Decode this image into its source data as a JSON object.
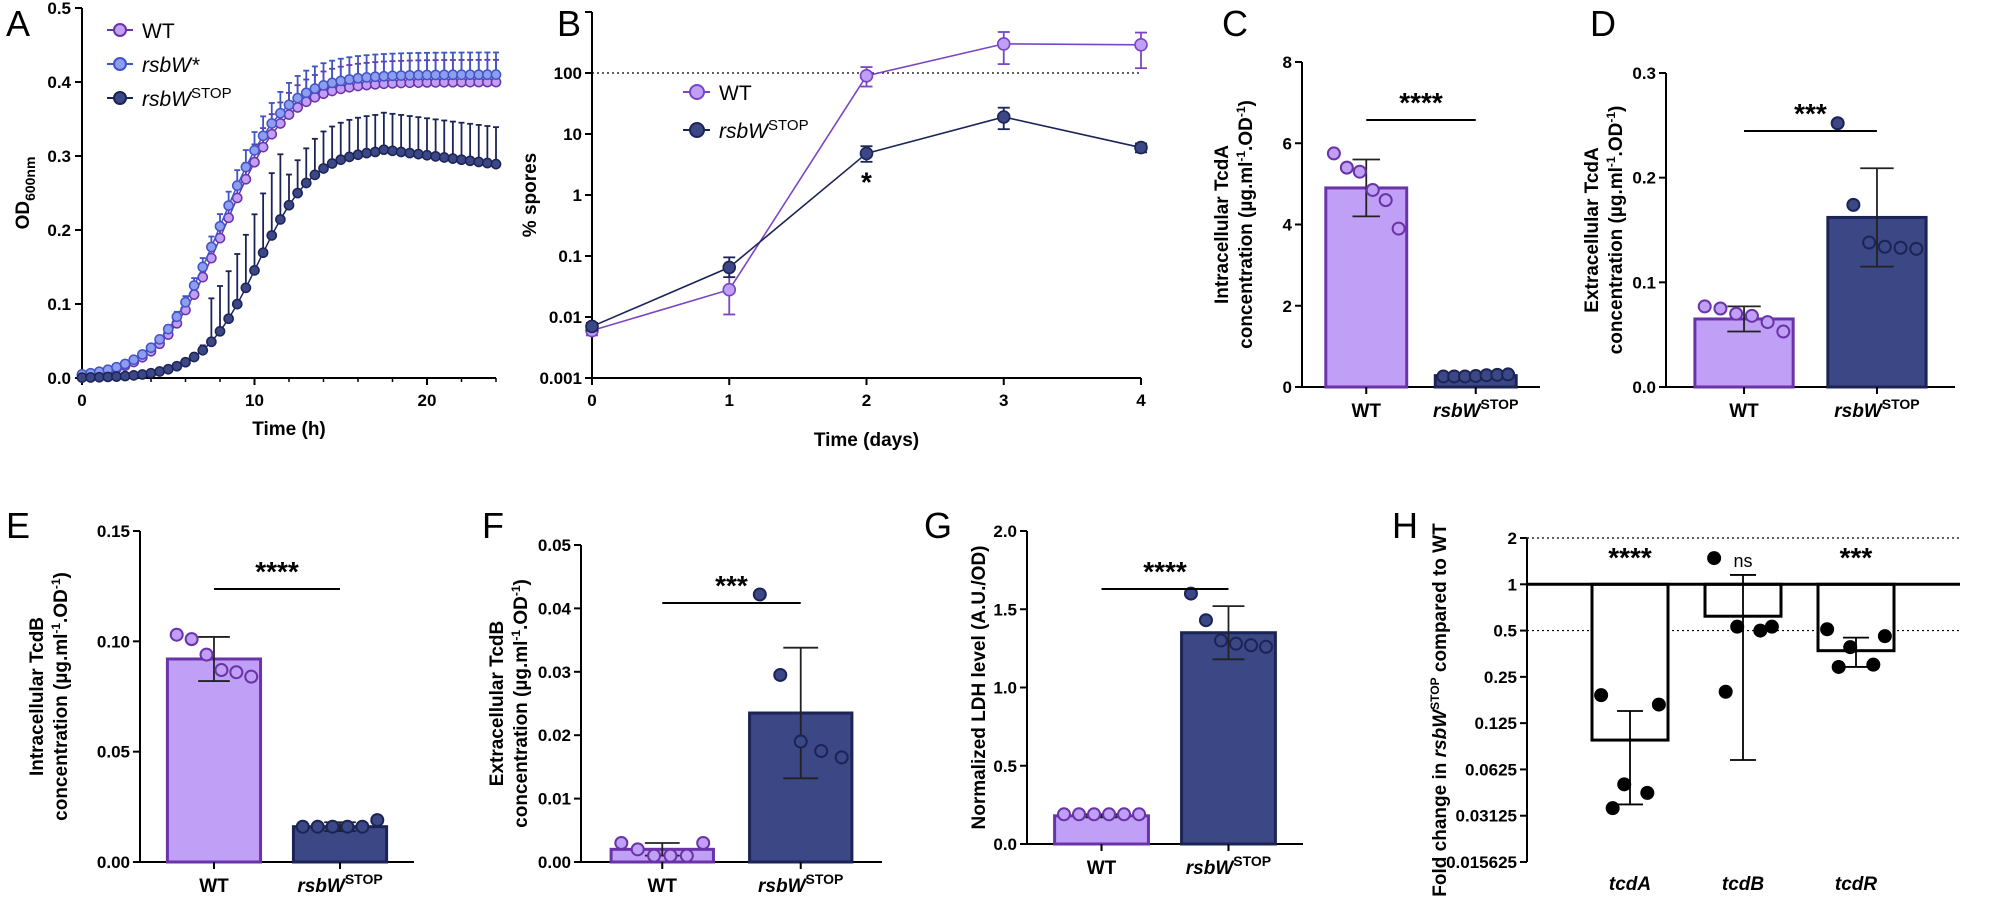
{
  "figure": {
    "panel_labels": [
      "A",
      "B",
      "C",
      "D",
      "E",
      "F",
      "G",
      "H"
    ],
    "colors": {
      "wt_fill": "#c09ff7",
      "wt_edge": "#6a33a8",
      "stop_fill": "#3c4785",
      "stop_edge": "#1c2457",
      "rsbw_fill": "#8f9df0",
      "black": "#000000"
    }
  },
  "chart_data": [
    {
      "panel": "A",
      "type": "line",
      "xlabel": "Time (h)",
      "ylabel": "OD",
      "ylabel_sub": "600nm",
      "xlim": [
        0,
        24
      ],
      "ylim": [
        0,
        0.5
      ],
      "xticks": [
        0,
        10,
        20
      ],
      "xticklabels": [
        "0",
        "10",
        "20"
      ],
      "yticks": [
        0,
        0.1,
        0.2,
        0.3,
        0.4,
        0.5
      ],
      "yticklabels": [
        "0.0",
        "0.1",
        "0.2",
        "0.3",
        "0.4",
        "0.5"
      ],
      "legend": [
        {
          "name": "WT",
          "italic": false,
          "sup": ""
        },
        {
          "name": "rsbW*",
          "italic": true,
          "sup": ""
        },
        {
          "name": "rsbW",
          "italic": true,
          "sup": "STOP"
        }
      ],
      "series": [
        {
          "name": "WT",
          "t_mid": 8.2,
          "k": 0.55,
          "max": 0.4,
          "slope_end": 0.0,
          "err": 0.03
        },
        {
          "name": "rsbW*",
          "t_mid": 8.0,
          "k": 0.55,
          "max": 0.41,
          "slope_end": 0.0,
          "err": 0.03
        },
        {
          "name": "rsbW STOP",
          "t_mid": 10.2,
          "k": 0.62,
          "max": 0.31,
          "slope_end": 0.0,
          "err": 0.05
        }
      ]
    },
    {
      "panel": "B",
      "type": "line",
      "xlabel": "Time (days)",
      "ylabel": "% spores",
      "xticks": [
        0,
        1,
        2,
        3,
        4
      ],
      "xticklabels": [
        "0",
        "1",
        "2",
        "3",
        "4"
      ],
      "yscale": "log",
      "ylim": [
        0.001,
        1000
      ],
      "yticks": [
        0.001,
        0.01,
        0.1,
        1,
        10,
        100
      ],
      "yticklabels": [
        "0.001",
        "0.01",
        "0.1",
        "1",
        "10",
        "100"
      ],
      "reference_line": 100,
      "legend": [
        {
          "name": "WT",
          "italic": false,
          "sup": ""
        },
        {
          "name": "rsbW",
          "italic": true,
          "sup": "STOP"
        }
      ],
      "annotation": "*",
      "series": [
        {
          "name": "WT",
          "x": [
            0,
            1,
            2,
            3,
            4
          ],
          "y": [
            0.006,
            0.028,
            90,
            300,
            290
          ],
          "err_lo": [
            0.005,
            0.011,
            60,
            140,
            120
          ],
          "err_hi": [
            0.008,
            0.06,
            125,
            470,
            460
          ]
        },
        {
          "name": "rsbW STOP",
          "x": [
            0,
            1,
            2,
            3,
            4
          ],
          "y": [
            0.007,
            0.065,
            4.8,
            19,
            6
          ],
          "err_lo": [
            0.006,
            0.045,
            3.5,
            12,
            5
          ],
          "err_hi": [
            0.008,
            0.095,
            6.3,
            27,
            7
          ]
        }
      ]
    },
    {
      "panel": "C",
      "type": "bar",
      "ylabel_lines": [
        "Intracellular TcdA",
        "concentration (µg.ml",
        "-1",
        ".OD",
        "-1",
        ")"
      ],
      "categories": [
        "WT",
        "rsbW STOP"
      ],
      "cat_main": [
        "WT",
        "rsbW"
      ],
      "cat_sup": [
        "",
        "STOP"
      ],
      "values": [
        4.9,
        0.28
      ],
      "err": [
        0.7,
        0.02
      ],
      "ylim": [
        0,
        8
      ],
      "yticks": [
        0,
        2,
        4,
        6,
        8
      ],
      "yticklabels": [
        "0",
        "2",
        "4",
        "6",
        "8"
      ],
      "points": [
        [
          5.75,
          5.4,
          5.3,
          4.85,
          4.6,
          3.9
        ],
        [
          0.26,
          0.26,
          0.26,
          0.27,
          0.29,
          0.3,
          0.31
        ]
      ],
      "significance": "****"
    },
    {
      "panel": "D",
      "type": "bar",
      "ylabel_lines": [
        "Extracellular TcdA",
        "concentration (µg.ml",
        "-1",
        ".OD",
        "-1",
        ")"
      ],
      "categories": [
        "WT",
        "rsbW STOP"
      ],
      "cat_main": [
        "WT",
        "rsbW"
      ],
      "cat_sup": [
        "",
        "STOP"
      ],
      "values": [
        0.065,
        0.162
      ],
      "err": [
        0.012,
        0.047
      ],
      "ylim": [
        0,
        0.3
      ],
      "yticks": [
        0,
        0.1,
        0.2,
        0.3
      ],
      "yticklabels": [
        "0.0",
        "0.1",
        "0.2",
        "0.3"
      ],
      "points": [
        [
          0.077,
          0.075,
          0.07,
          0.068,
          0.062,
          0.053
        ],
        [
          0.252,
          0.174,
          0.138,
          0.134,
          0.133,
          0.132
        ]
      ],
      "significance": "***"
    },
    {
      "panel": "E",
      "type": "bar",
      "ylabel_lines": [
        "Intracellular TcdB",
        "concentration (µg.ml",
        "-1",
        ".OD",
        "-1",
        ")"
      ],
      "categories": [
        "WT",
        "rsbW STOP"
      ],
      "cat_main": [
        "WT",
        "rsbW"
      ],
      "cat_sup": [
        "",
        "STOP"
      ],
      "values": [
        0.092,
        0.016
      ],
      "err": [
        0.01,
        0.002
      ],
      "ylim": [
        0,
        0.15
      ],
      "yticks": [
        0,
        0.05,
        0.1,
        0.15
      ],
      "yticklabels": [
        "0.00",
        "0.05",
        "0.10",
        "0.15"
      ],
      "points": [
        [
          0.103,
          0.101,
          0.094,
          0.087,
          0.086,
          0.084
        ],
        [
          0.016,
          0.016,
          0.016,
          0.016,
          0.016,
          0.019
        ]
      ],
      "significance": "****"
    },
    {
      "panel": "F",
      "type": "bar",
      "ylabel_lines": [
        "Extracellular TcdB",
        "concentration (µg.ml",
        "-1",
        ".OD",
        "-1",
        ")"
      ],
      "categories": [
        "WT",
        "rsbW STOP"
      ],
      "cat_main": [
        "WT",
        "rsbW"
      ],
      "cat_sup": [
        "",
        "STOP"
      ],
      "values": [
        0.002,
        0.0235
      ],
      "err": [
        0.001,
        0.0103
      ],
      "ylim": [
        0,
        0.05
      ],
      "yticks": [
        0,
        0.01,
        0.02,
        0.03,
        0.04,
        0.05
      ],
      "yticklabels": [
        "0.00",
        "0.01",
        "0.02",
        "0.03",
        "0.04",
        "0.05"
      ],
      "points": [
        [
          0.003,
          0.002,
          0.001,
          0.001,
          0.001,
          0.003
        ],
        [
          0.0422,
          0.0295,
          0.019,
          0.0175,
          0.0165
        ]
      ],
      "significance": "***"
    },
    {
      "panel": "G",
      "type": "bar",
      "ylabel_lines": [
        "Normalized LDH level (A.U./OD)"
      ],
      "categories": [
        "WT",
        "rsbW STOP"
      ],
      "cat_main": [
        "WT",
        "rsbW"
      ],
      "cat_sup": [
        "",
        "STOP"
      ],
      "values": [
        0.18,
        1.35
      ],
      "err": [
        0.01,
        0.17
      ],
      "ylim": [
        0,
        2.0
      ],
      "yticks": [
        0,
        0.5,
        1.0,
        1.5,
        2.0
      ],
      "yticklabels": [
        "0.0",
        "0.5",
        "1.0",
        "1.5",
        "2.0"
      ],
      "points": [
        [
          0.19,
          0.19,
          0.19,
          0.19,
          0.19,
          0.19
        ],
        [
          1.6,
          1.43,
          1.3,
          1.28,
          1.27,
          1.26
        ]
      ],
      "significance": "****"
    },
    {
      "panel": "H",
      "type": "bar",
      "yscale": "log2",
      "ylabel_parts": [
        "Fold change in ",
        "rsbW",
        "STOP",
        " compared to WT"
      ],
      "categories": [
        "tcdA",
        "tcdB",
        "tcdR"
      ],
      "values": [
        0.097,
        0.62,
        0.37
      ],
      "err_lo": [
        0.037,
        0.072,
        0.29
      ],
      "err_hi": [
        0.15,
        1.15,
        0.45
      ],
      "ylim": [
        0.015625,
        2
      ],
      "yticks": [
        0.015625,
        0.03125,
        0.0625,
        0.125,
        0.25,
        0.5,
        1,
        2
      ],
      "yticklabels": [
        "0.015625",
        "0.03125",
        "0.0625",
        "0.125",
        "0.25",
        "0.5",
        "1",
        "2"
      ],
      "reference_lines": [
        1
      ],
      "dotted_lines": [
        0.5,
        2
      ],
      "points": [
        [
          0.19,
          0.165,
          0.05,
          0.044,
          0.035
        ],
        [
          1.48,
          0.53,
          0.53,
          0.5,
          0.2
        ],
        [
          0.51,
          0.46,
          0.39,
          0.3,
          0.29
        ]
      ],
      "significance": [
        "****",
        "ns",
        "***"
      ]
    }
  ]
}
